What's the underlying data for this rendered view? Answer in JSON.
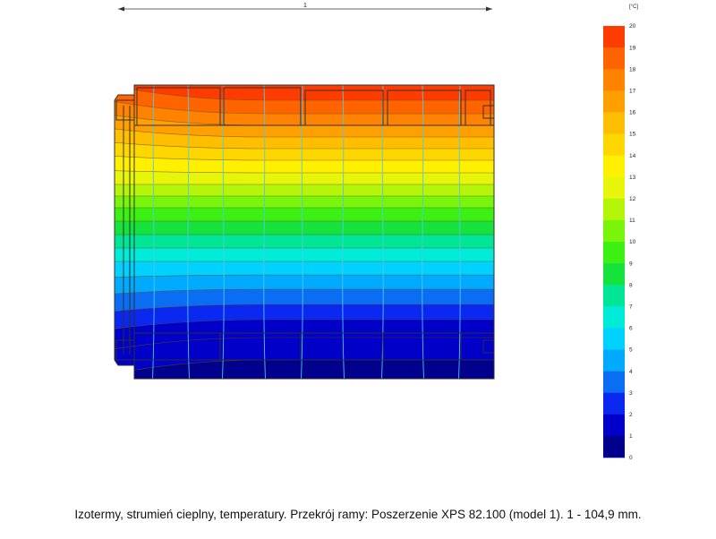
{
  "dimension": {
    "label": "1"
  },
  "legend": {
    "unit": "[°C]",
    "ticks": [
      "20",
      "19",
      "18",
      "17",
      "16",
      "15",
      "14",
      "13",
      "12",
      "11",
      "10",
      "9",
      "8",
      "7",
      "6",
      "5",
      "4",
      "3",
      "2",
      "1",
      "0"
    ]
  },
  "colors": {
    "scale": [
      "#00008c",
      "#0000c8",
      "#0a28f0",
      "#0a6ef5",
      "#00aaff",
      "#00d2ff",
      "#00ecd8",
      "#00e696",
      "#16e23c",
      "#3cf014",
      "#78f50a",
      "#b4f50a",
      "#e6f50a",
      "#fff000",
      "#ffd700",
      "#ffbe00",
      "#ffa000",
      "#ff8200",
      "#ff6400",
      "#ff3c00"
    ],
    "outline": "#303030",
    "grid_lines": "#50c8e6"
  },
  "caption": "Izotermy, strumień cieplny, temperatury. Przekrój ramy: Poszerzenie XPS 82.100 (model 1). 1 - 104,9 mm."
}
